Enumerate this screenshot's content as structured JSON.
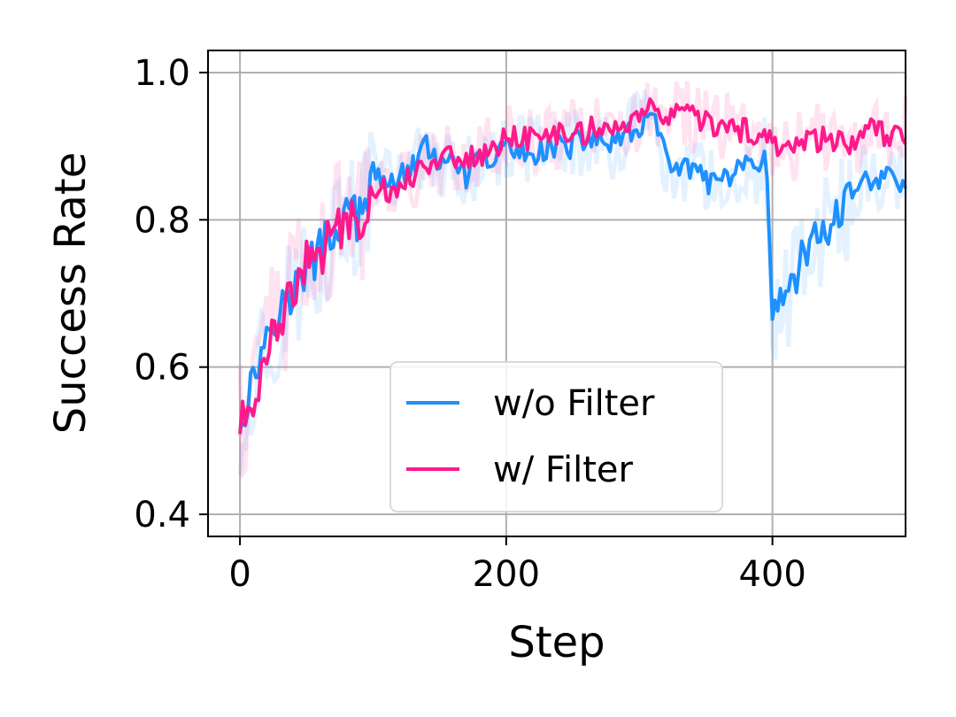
{
  "chart_data": {
    "type": "line",
    "title": "",
    "xlabel": "Step",
    "ylabel": "Success Rate",
    "xlim": [
      -24,
      500
    ],
    "ylim": [
      0.37,
      1.03
    ],
    "xticks": [
      0,
      200,
      400
    ],
    "xtick_labels": [
      "0",
      "200",
      "400"
    ],
    "yticks": [
      0.4,
      0.6,
      0.8,
      1.0
    ],
    "ytick_labels": [
      "0.4",
      "0.6",
      "0.8",
      "1.0"
    ],
    "grid": true,
    "legend_position": "lower-center",
    "series": [
      {
        "name": "w/o Filter",
        "color": "#1E90FF",
        "x": [
          0,
          10,
          20,
          30,
          40,
          50,
          60,
          70,
          80,
          90,
          100,
          110,
          120,
          130,
          140,
          150,
          160,
          170,
          180,
          190,
          200,
          210,
          220,
          230,
          240,
          250,
          260,
          270,
          280,
          290,
          300,
          310,
          320,
          330,
          340,
          350,
          360,
          370,
          380,
          390,
          395,
          400,
          405,
          410,
          420,
          430,
          440,
          450,
          460,
          470,
          480,
          490,
          500
        ],
        "y": [
          0.53,
          0.58,
          0.65,
          0.68,
          0.7,
          0.73,
          0.76,
          0.78,
          0.81,
          0.8,
          0.86,
          0.85,
          0.86,
          0.87,
          0.9,
          0.88,
          0.87,
          0.86,
          0.88,
          0.88,
          0.9,
          0.89,
          0.89,
          0.9,
          0.9,
          0.9,
          0.91,
          0.91,
          0.9,
          0.91,
          0.93,
          0.94,
          0.88,
          0.87,
          0.87,
          0.85,
          0.85,
          0.86,
          0.87,
          0.86,
          0.89,
          0.64,
          0.71,
          0.68,
          0.74,
          0.77,
          0.79,
          0.8,
          0.84,
          0.86,
          0.85,
          0.86,
          0.85
        ]
      },
      {
        "name": "w/ Filter",
        "color": "#FF1A8C",
        "x": [
          0,
          10,
          20,
          30,
          40,
          50,
          60,
          70,
          80,
          90,
          100,
          110,
          120,
          130,
          140,
          150,
          160,
          170,
          180,
          190,
          200,
          210,
          220,
          230,
          240,
          250,
          260,
          270,
          280,
          290,
          300,
          310,
          320,
          330,
          340,
          350,
          360,
          370,
          380,
          390,
          400,
          410,
          420,
          430,
          440,
          450,
          460,
          470,
          480,
          490,
          500
        ],
        "y": [
          0.52,
          0.55,
          0.63,
          0.67,
          0.7,
          0.74,
          0.75,
          0.78,
          0.8,
          0.8,
          0.84,
          0.84,
          0.85,
          0.86,
          0.88,
          0.88,
          0.89,
          0.88,
          0.89,
          0.89,
          0.92,
          0.91,
          0.91,
          0.91,
          0.92,
          0.92,
          0.92,
          0.93,
          0.92,
          0.93,
          0.94,
          0.95,
          0.94,
          0.94,
          0.94,
          0.93,
          0.93,
          0.92,
          0.92,
          0.91,
          0.91,
          0.89,
          0.91,
          0.91,
          0.91,
          0.91,
          0.9,
          0.92,
          0.92,
          0.91,
          0.92
        ]
      }
    ]
  }
}
